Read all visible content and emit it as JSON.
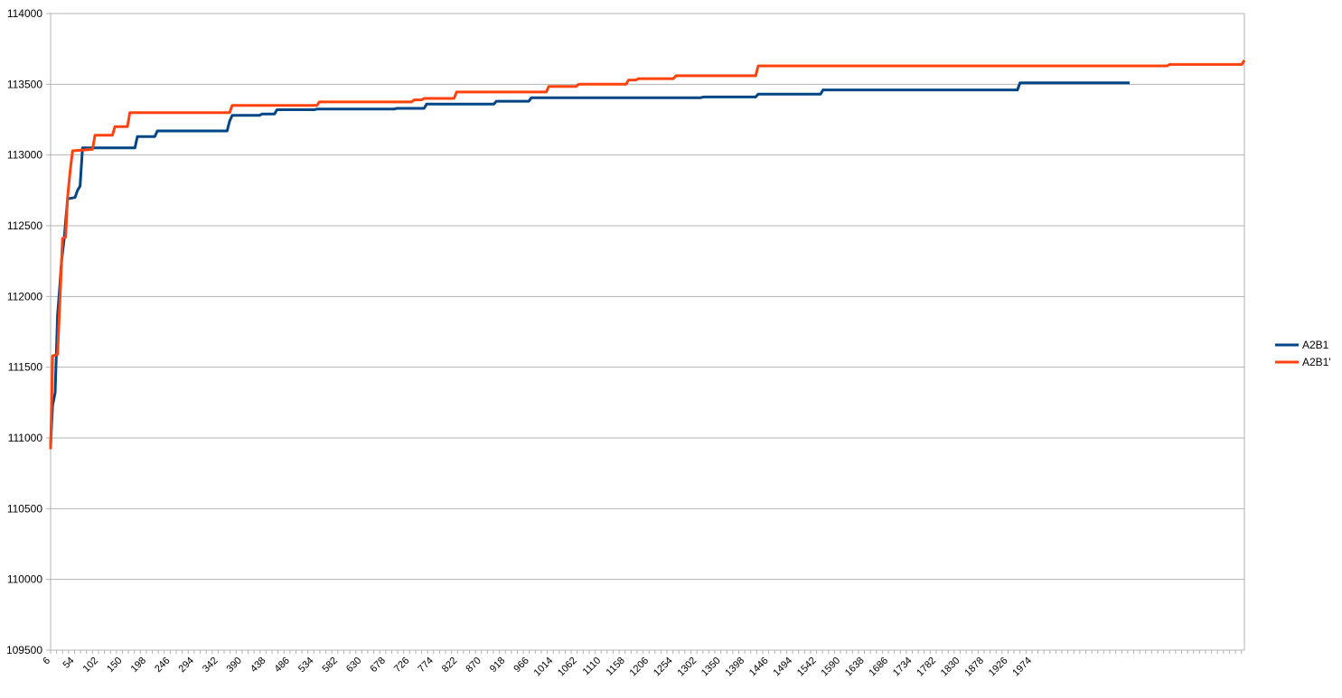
{
  "chart_data": {
    "type": "line",
    "title": "",
    "xlabel": "",
    "ylabel": "",
    "ylim": [
      109500,
      114000
    ],
    "xlim": [
      6,
      2400
    ],
    "yticks": [
      109500,
      110000,
      110500,
      111000,
      111500,
      112000,
      112500,
      113000,
      113500,
      114000
    ],
    "xticks": [
      6,
      54,
      102,
      150,
      198,
      246,
      294,
      342,
      390,
      438,
      486,
      534,
      582,
      630,
      678,
      726,
      774,
      822,
      870,
      918,
      966,
      1014,
      1062,
      1110,
      1158,
      1206,
      1254,
      1302,
      1350,
      1398,
      1446,
      1494,
      1542,
      1590,
      1638,
      1686,
      1734,
      1782,
      1830,
      1878,
      1926,
      1974
    ],
    "grid": true,
    "legend_position": "right",
    "series": [
      {
        "name": "A2B1",
        "color": "#004586",
        "points": [
          [
            6,
            110950
          ],
          [
            10,
            111230
          ],
          [
            15,
            111320
          ],
          [
            20,
            111870
          ],
          [
            25,
            112100
          ],
          [
            28,
            112250
          ],
          [
            33,
            112400
          ],
          [
            40,
            112690
          ],
          [
            55,
            112700
          ],
          [
            60,
            112750
          ],
          [
            65,
            112780
          ],
          [
            70,
            113050
          ],
          [
            175,
            113050
          ],
          [
            180,
            113130
          ],
          [
            215,
            113130
          ],
          [
            220,
            113170
          ],
          [
            360,
            113170
          ],
          [
            365,
            113240
          ],
          [
            370,
            113280
          ],
          [
            425,
            113280
          ],
          [
            430,
            113290
          ],
          [
            455,
            113290
          ],
          [
            460,
            113320
          ],
          [
            535,
            113320
          ],
          [
            540,
            113325
          ],
          [
            695,
            113325
          ],
          [
            700,
            113330
          ],
          [
            755,
            113330
          ],
          [
            760,
            113360
          ],
          [
            895,
            113360
          ],
          [
            900,
            113380
          ],
          [
            965,
            113380
          ],
          [
            970,
            113405
          ],
          [
            1310,
            113405
          ],
          [
            1315,
            113410
          ],
          [
            1420,
            113410
          ],
          [
            1425,
            113430
          ],
          [
            1550,
            113430
          ],
          [
            1555,
            113460
          ],
          [
            1945,
            113460
          ],
          [
            1950,
            113510
          ],
          [
            2170,
            113510
          ]
        ]
      },
      {
        "name": "A2B1'",
        "color": "#ff420e",
        "points": [
          [
            6,
            110920
          ],
          [
            10,
            111580
          ],
          [
            20,
            111590
          ],
          [
            25,
            112000
          ],
          [
            30,
            112410
          ],
          [
            36,
            112420
          ],
          [
            40,
            112700
          ],
          [
            45,
            112880
          ],
          [
            50,
            113030
          ],
          [
            90,
            113040
          ],
          [
            95,
            113140
          ],
          [
            130,
            113140
          ],
          [
            135,
            113200
          ],
          [
            160,
            113200
          ],
          [
            165,
            113300
          ],
          [
            365,
            113300
          ],
          [
            370,
            113350
          ],
          [
            540,
            113350
          ],
          [
            545,
            113375
          ],
          [
            730,
            113375
          ],
          [
            735,
            113390
          ],
          [
            750,
            113390
          ],
          [
            755,
            113400
          ],
          [
            815,
            113400
          ],
          [
            820,
            113445
          ],
          [
            1000,
            113445
          ],
          [
            1005,
            113485
          ],
          [
            1060,
            113485
          ],
          [
            1065,
            113500
          ],
          [
            1160,
            113500
          ],
          [
            1165,
            113530
          ],
          [
            1180,
            113530
          ],
          [
            1185,
            113540
          ],
          [
            1255,
            113540
          ],
          [
            1260,
            113560
          ],
          [
            1420,
            113560
          ],
          [
            1425,
            113630
          ],
          [
            2245,
            113630
          ],
          [
            2250,
            113640
          ],
          [
            2395,
            113640
          ],
          [
            2400,
            113670
          ]
        ]
      }
    ]
  }
}
